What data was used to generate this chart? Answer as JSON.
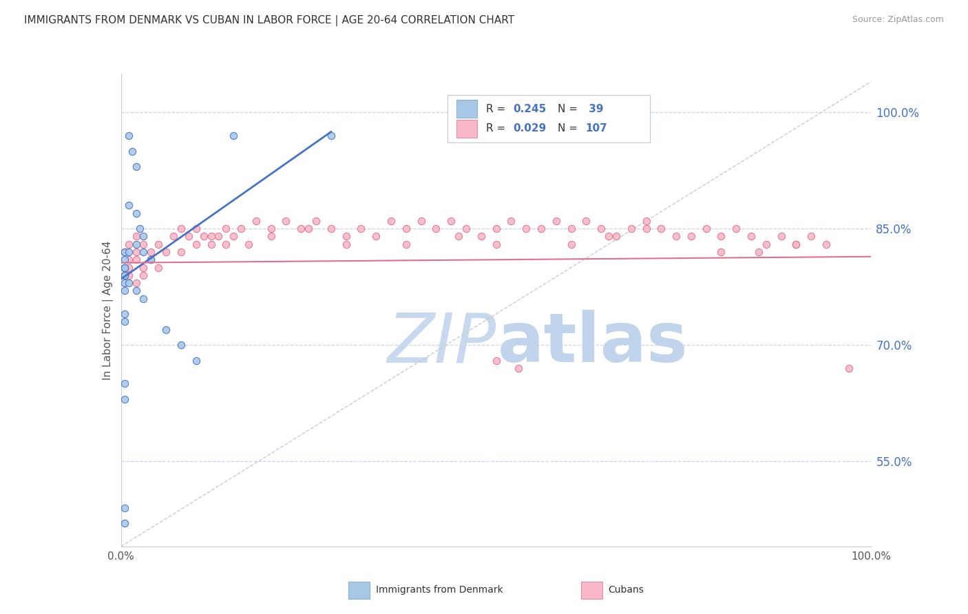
{
  "title": "IMMIGRANTS FROM DENMARK VS CUBAN IN LABOR FORCE | AGE 20-64 CORRELATION CHART",
  "source": "Source: ZipAtlas.com",
  "ylabel": "In Labor Force | Age 20-64",
  "xlim": [
    0.0,
    1.0
  ],
  "ylim": [
    0.44,
    1.05
  ],
  "ytick_labels": [
    "55.0%",
    "70.0%",
    "85.0%",
    "100.0%"
  ],
  "ytick_values": [
    0.55,
    0.7,
    0.85,
    1.0
  ],
  "xtick_labels": [
    "0.0%",
    "100.0%"
  ],
  "xtick_values": [
    0.0,
    1.0
  ],
  "r_stats": [
    {
      "R": "0.245",
      "N": " 39"
    },
    {
      "R": "0.029",
      "N": "107"
    }
  ],
  "denmark_color": "#a8c8e8",
  "denmark_edge_color": "#4472c4",
  "cuba_color": "#f8b8c8",
  "cuba_edge_color": "#e07090",
  "denmark_line_color": "#4472c4",
  "cuba_line_color": "#e07090",
  "bg_color": "#ffffff",
  "grid_color": "#c8d4e8",
  "watermark_zip_color": "#c0d0e8",
  "watermark_atlas_color": "#b0c8e0",
  "scatter_size": 55
}
